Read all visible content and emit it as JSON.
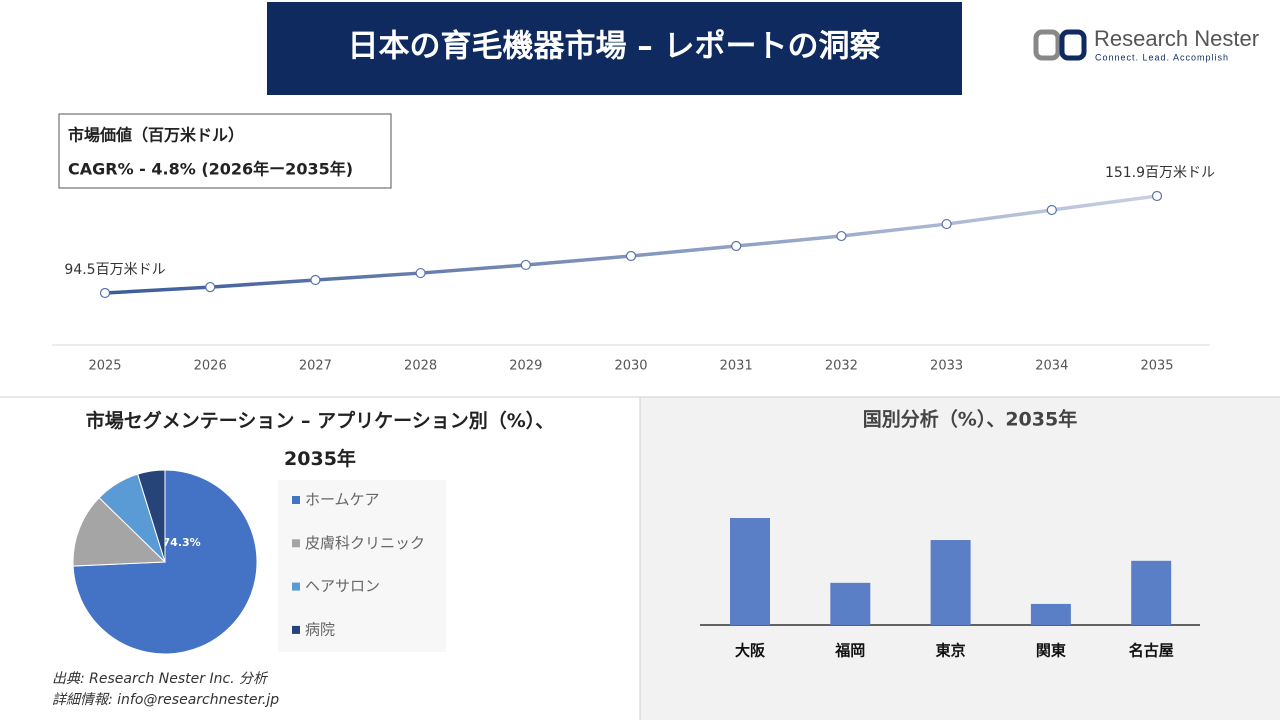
{
  "header": {
    "title": "日本の育毛機器市場 – レポートの洞察"
  },
  "logo": {
    "name": "Research Nester",
    "tagline": "Connect. Lead. Accomplish"
  },
  "chart_data": [
    {
      "type": "line",
      "annotations": [
        "市場価値（百万米ドル）",
        "CAGR% - 4.8% (2026年ー2035年)"
      ],
      "categories": [
        "2025",
        "2026",
        "2027",
        "2028",
        "2029",
        "2030",
        "2031",
        "2032",
        "2033",
        "2034",
        "2035"
      ],
      "values": [
        94.5,
        98.0,
        102.2,
        106.3,
        111.1,
        116.4,
        122.3,
        128.2,
        135.3,
        143.6,
        151.9
      ],
      "value_labels": [
        "94.5百万米ドル",
        null,
        null,
        null,
        null,
        null,
        null,
        null,
        null,
        null,
        "151.9百万米ドル"
      ],
      "colors": [
        "#3b5a98",
        "#c9d0e2"
      ]
    },
    {
      "type": "pie",
      "title": "市場セグメンテーション – アプリケーション別（%）、2035年",
      "categories": [
        "ホームケア",
        "皮膚科クリニック",
        "ヘアサロン",
        "病院"
      ],
      "values": [
        74.3,
        13.0,
        7.9,
        4.8
      ],
      "value_labels": [
        "74.3%",
        null,
        null,
        null
      ],
      "colors": [
        "#4472c4",
        "#a5a5a5",
        "#5b9bd5",
        "#264478"
      ]
    },
    {
      "type": "bar",
      "title": "国別分析（%）、2035年",
      "categories": [
        "大阪",
        "福岡",
        "東京",
        "関東",
        "名古屋"
      ],
      "values": [
        33.5,
        13.2,
        26.6,
        6.6,
        20.1
      ],
      "color": "#5b7fc7"
    }
  ],
  "footer": {
    "source": "出典: Research Nester Inc. 分析",
    "contact": "詳細情報: info@researchnester.jp"
  }
}
